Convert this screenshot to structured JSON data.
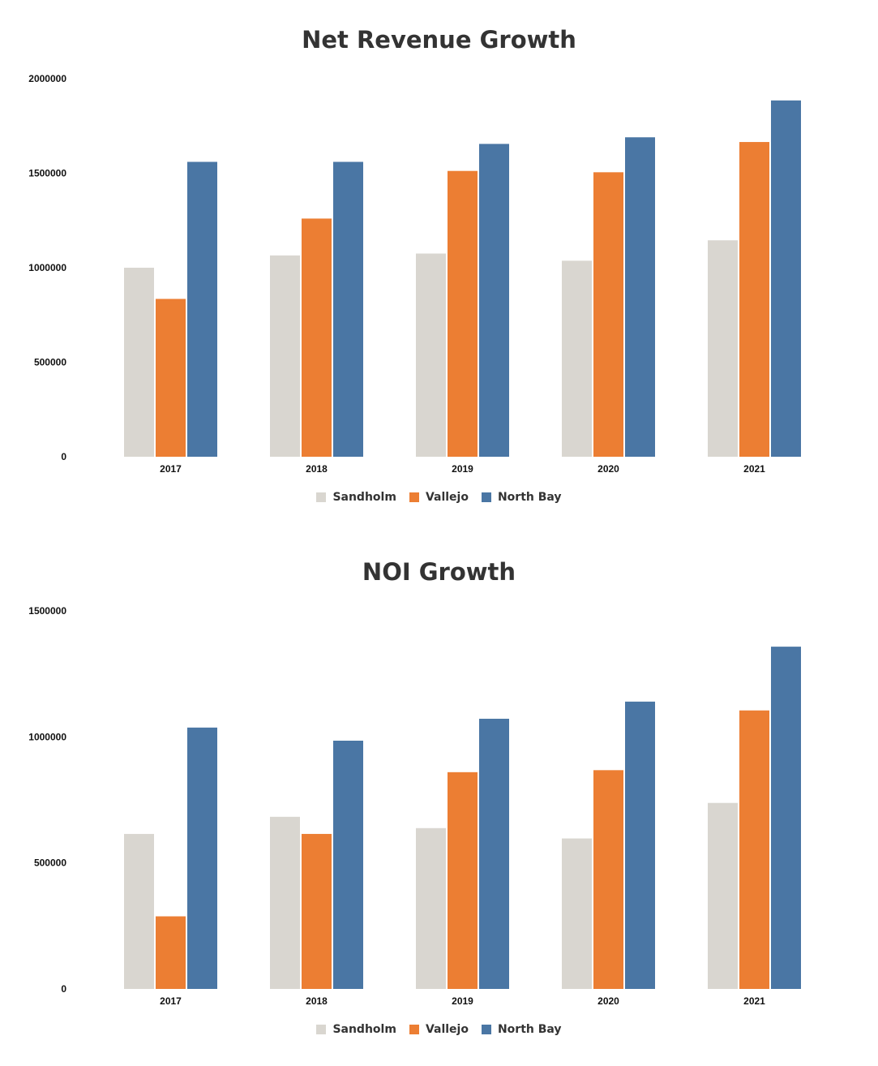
{
  "colors": {
    "Sandholm": "#d9d6d0",
    "Vallejo": "#ec7e33",
    "North Bay": "#4a76a4"
  },
  "chart_data": [
    {
      "type": "bar",
      "title": "Net Revenue Growth",
      "categories": [
        "2017",
        "2018",
        "2019",
        "2020",
        "2021"
      ],
      "series": [
        {
          "name": "Sandholm",
          "values": [
            1000000,
            1065000,
            1075000,
            1037000,
            1145000
          ]
        },
        {
          "name": "Vallejo",
          "values": [
            835000,
            1260000,
            1512000,
            1505000,
            1665000
          ]
        },
        {
          "name": "North Bay",
          "values": [
            1560000,
            1560000,
            1655000,
            1690000,
            1885000
          ]
        }
      ],
      "ylim": [
        0,
        2000000
      ],
      "yticks": [
        "0",
        "500000",
        "1000000",
        "1500000",
        "2000000"
      ],
      "legend": "bottom",
      "grid": false
    },
    {
      "type": "bar",
      "title": "NOI Growth",
      "categories": [
        "2017",
        "2018",
        "2019",
        "2020",
        "2021"
      ],
      "series": [
        {
          "name": "Sandholm",
          "values": [
            615000,
            683000,
            638000,
            597000,
            738000
          ]
        },
        {
          "name": "Vallejo",
          "values": [
            288000,
            615000,
            860000,
            868000,
            1105000
          ]
        },
        {
          "name": "North Bay",
          "values": [
            1037000,
            985000,
            1072000,
            1140000,
            1358000
          ]
        }
      ],
      "ylim": [
        0,
        1500000
      ],
      "yticks": [
        "0",
        "500000",
        "1000000",
        "1500000"
      ],
      "legend": "bottom",
      "grid": false
    }
  ]
}
